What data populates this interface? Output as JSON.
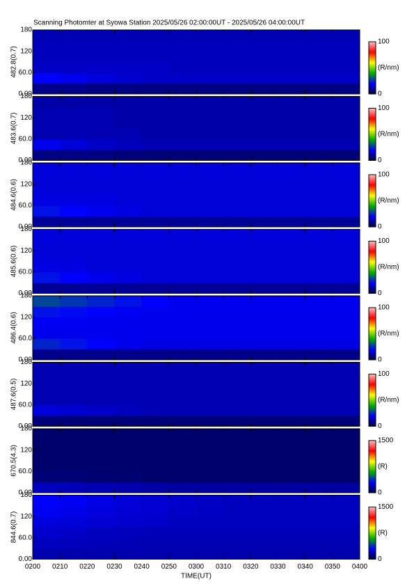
{
  "title": "Scanning Photomter at Syowa Station 2025/05/26 02:00:00UT - 2025/05/26 04:00:00UT",
  "xlabel": "TIME(UT)",
  "xticks": [
    "0200",
    "0210",
    "0220",
    "0230",
    "0240",
    "0250",
    "0300",
    "0310",
    "0320",
    "0330",
    "0340",
    "0350",
    "0400"
  ],
  "colormap": [
    "#000040",
    "#0000ff",
    "#00b000",
    "#ffff00",
    "#ff0000",
    "#ffc0c0"
  ],
  "chart_data": [
    {
      "type": "heatmap",
      "ylabel": "482.8(0.7)",
      "ylim": [
        0,
        180
      ],
      "yticks": [
        {
          "value": 0,
          "label": "0.00"
        },
        {
          "value": 60,
          "label": "60.0"
        },
        120,
        180
      ],
      "clim": [
        0,
        100
      ],
      "cticks": [
        0,
        100
      ],
      "clabel": "(R/nm)",
      "values": [
        [
          8,
          8,
          7,
          7,
          7,
          7,
          7,
          7,
          7,
          7,
          7,
          7
        ],
        [
          20,
          18,
          16,
          15,
          14,
          14,
          14,
          14,
          14,
          14,
          14,
          14
        ],
        [
          14,
          14,
          14,
          14,
          14,
          13,
          13,
          13,
          13,
          13,
          13,
          13
        ],
        [
          13,
          13,
          13,
          13,
          13,
          13,
          13,
          13,
          13,
          13,
          13,
          13
        ],
        [
          13,
          13,
          13,
          13,
          13,
          13,
          13,
          13,
          13,
          13,
          13,
          13
        ],
        [
          12,
          12,
          12,
          12,
          12,
          12,
          12,
          12,
          12,
          12,
          12,
          12
        ]
      ]
    },
    {
      "type": "heatmap",
      "ylabel": "483.6(0.7)",
      "ylim": [
        0,
        180
      ],
      "yticks": [
        {
          "value": 0,
          "label": "0.00"
        },
        {
          "value": 60,
          "label": "60.0"
        },
        120,
        180
      ],
      "clim": [
        0,
        100
      ],
      "cticks": [
        0,
        100
      ],
      "clabel": "(R/nm)",
      "values": [
        [
          7,
          7,
          7,
          6,
          6,
          6,
          6,
          6,
          6,
          6,
          6,
          6
        ],
        [
          18,
          16,
          14,
          13,
          12,
          12,
          12,
          12,
          12,
          12,
          12,
          12
        ],
        [
          12,
          12,
          12,
          12,
          11,
          11,
          11,
          11,
          11,
          11,
          11,
          11
        ],
        [
          12,
          12,
          12,
          11,
          11,
          11,
          11,
          11,
          11,
          11,
          11,
          11
        ],
        [
          12,
          12,
          12,
          11,
          11,
          11,
          11,
          11,
          11,
          11,
          11,
          11
        ],
        [
          11,
          11,
          11,
          11,
          11,
          11,
          11,
          11,
          11,
          11,
          11,
          11
        ]
      ]
    },
    {
      "type": "heatmap",
      "ylabel": "484.6(0.6)",
      "ylim": [
        0,
        180
      ],
      "yticks": [
        {
          "value": 0,
          "label": "0.00"
        },
        {
          "value": 60,
          "label": "60.0"
        },
        120,
        180
      ],
      "clim": [
        0,
        100
      ],
      "cticks": [
        0,
        100
      ],
      "clabel": "(R/nm)",
      "values": [
        [
          9,
          9,
          9,
          9,
          9,
          9,
          9,
          9,
          9,
          9,
          9,
          9
        ],
        [
          22,
          20,
          18,
          17,
          16,
          16,
          16,
          16,
          16,
          16,
          16,
          16
        ],
        [
          17,
          17,
          17,
          16,
          16,
          16,
          16,
          16,
          16,
          16,
          16,
          16
        ],
        [
          16,
          16,
          16,
          16,
          16,
          16,
          16,
          16,
          16,
          16,
          16,
          16
        ],
        [
          16,
          16,
          16,
          16,
          16,
          16,
          16,
          16,
          16,
          16,
          16,
          16
        ],
        [
          16,
          16,
          16,
          16,
          16,
          16,
          16,
          16,
          16,
          16,
          16,
          16
        ]
      ]
    },
    {
      "type": "heatmap",
      "ylabel": "485.6(0.6)",
      "ylim": [
        0,
        180
      ],
      "yticks": [
        {
          "value": 0,
          "label": "0.00"
        },
        {
          "value": 60,
          "label": "60.0"
        },
        120,
        180
      ],
      "clim": [
        0,
        100
      ],
      "cticks": [
        0,
        100
      ],
      "clabel": "(R/nm)",
      "values": [
        [
          9,
          9,
          9,
          9,
          9,
          9,
          9,
          9,
          9,
          9,
          9,
          9
        ],
        [
          22,
          20,
          18,
          17,
          16,
          16,
          16,
          16,
          16,
          16,
          16,
          16
        ],
        [
          17,
          17,
          16,
          16,
          16,
          16,
          16,
          16,
          16,
          16,
          16,
          16
        ],
        [
          16,
          16,
          16,
          16,
          16,
          16,
          16,
          16,
          16,
          16,
          16,
          16
        ],
        [
          16,
          16,
          16,
          16,
          16,
          16,
          16,
          16,
          16,
          16,
          16,
          16
        ],
        [
          16,
          16,
          16,
          16,
          16,
          16,
          16,
          16,
          16,
          16,
          16,
          16
        ]
      ]
    },
    {
      "type": "heatmap",
      "ylabel": "486.4(0.6)",
      "ylim": [
        0,
        180
      ],
      "yticks": [
        {
          "value": 0,
          "label": "0.00"
        },
        {
          "value": 60,
          "label": "60.0"
        },
        120,
        180
      ],
      "clim": [
        0,
        100
      ],
      "cticks": [
        0,
        100
      ],
      "clabel": "(R/nm)",
      "values": [
        [
          8,
          8,
          8,
          8,
          8,
          8,
          8,
          8,
          8,
          8,
          8,
          8
        ],
        [
          24,
          22,
          20,
          18,
          17,
          17,
          17,
          17,
          17,
          17,
          17,
          17
        ],
        [
          18,
          18,
          18,
          18,
          18,
          18,
          18,
          18,
          18,
          18,
          18,
          18
        ],
        [
          19,
          19,
          18,
          18,
          18,
          18,
          18,
          18,
          18,
          18,
          18,
          18
        ],
        [
          22,
          21,
          20,
          19,
          18,
          18,
          18,
          18,
          18,
          18,
          18,
          18
        ],
        [
          28,
          26,
          24,
          22,
          20,
          18,
          18,
          18,
          18,
          18,
          18,
          18
        ]
      ]
    },
    {
      "type": "heatmap",
      "ylabel": "487.6(0.5)",
      "ylim": [
        0,
        180
      ],
      "yticks": [
        {
          "value": 0,
          "label": "0.00"
        },
        {
          "value": 60,
          "label": "60.0"
        },
        120,
        180
      ],
      "clim": [
        0,
        100
      ],
      "cticks": [
        0,
        100
      ],
      "clabel": "(R/nm)",
      "values": [
        [
          6,
          6,
          6,
          6,
          6,
          6,
          6,
          6,
          6,
          6,
          6,
          6
        ],
        [
          16,
          15,
          14,
          13,
          12,
          12,
          12,
          12,
          12,
          12,
          12,
          12
        ],
        [
          12,
          12,
          12,
          12,
          12,
          12,
          12,
          12,
          12,
          12,
          12,
          12
        ],
        [
          12,
          12,
          12,
          12,
          12,
          12,
          12,
          12,
          12,
          12,
          12,
          12
        ],
        [
          12,
          12,
          12,
          12,
          12,
          12,
          12,
          12,
          12,
          12,
          12,
          12
        ],
        [
          12,
          12,
          12,
          12,
          12,
          12,
          12,
          12,
          12,
          12,
          12,
          12
        ]
      ]
    },
    {
      "type": "heatmap",
      "ylabel": "670.5(4.3)",
      "ylim": [
        0,
        180
      ],
      "yticks": [
        {
          "value": 0,
          "label": "0.00"
        },
        {
          "value": 60,
          "label": "60.0"
        },
        120,
        180
      ],
      "clim": [
        0,
        1500
      ],
      "cticks": [
        0,
        1500
      ],
      "clabel": "(R)",
      "values": [
        [
          200,
          190,
          180,
          170,
          160,
          150,
          150,
          150,
          150,
          150,
          150,
          150
        ],
        [
          90,
          85,
          80,
          75,
          70,
          70,
          70,
          70,
          70,
          70,
          70,
          70
        ],
        [
          70,
          70,
          70,
          70,
          70,
          70,
          70,
          70,
          70,
          70,
          70,
          70
        ],
        [
          70,
          70,
          70,
          70,
          70,
          70,
          70,
          70,
          70,
          70,
          70,
          70
        ],
        [
          70,
          70,
          70,
          70,
          70,
          70,
          70,
          70,
          70,
          70,
          70,
          70
        ],
        [
          70,
          70,
          70,
          70,
          70,
          70,
          70,
          70,
          70,
          70,
          70,
          70
        ]
      ]
    },
    {
      "type": "heatmap",
      "ylabel": "844.6(0.7)",
      "ylim": [
        0,
        180
      ],
      "yticks": [
        {
          "value": 0,
          "label": "0.00"
        },
        {
          "value": 60,
          "label": "60.0"
        },
        120,
        180
      ],
      "clim": [
        0,
        1500
      ],
      "cticks": [
        0,
        1500
      ],
      "clabel": "(R)",
      "values": [
        [
          170,
          170,
          170,
          170,
          170,
          170,
          170,
          170,
          170,
          170,
          170,
          170
        ],
        [
          200,
          195,
          190,
          185,
          180,
          180,
          180,
          180,
          180,
          180,
          180,
          180
        ],
        [
          220,
          210,
          200,
          195,
          190,
          190,
          190,
          190,
          190,
          190,
          190,
          190
        ],
        [
          250,
          240,
          230,
          220,
          210,
          200,
          200,
          200,
          200,
          200,
          200,
          200
        ],
        [
          280,
          265,
          250,
          235,
          225,
          215,
          205,
          200,
          200,
          200,
          200,
          200
        ],
        [
          300,
          280,
          260,
          240,
          230,
          220,
          210,
          200,
          200,
          200,
          200,
          200
        ]
      ]
    }
  ]
}
